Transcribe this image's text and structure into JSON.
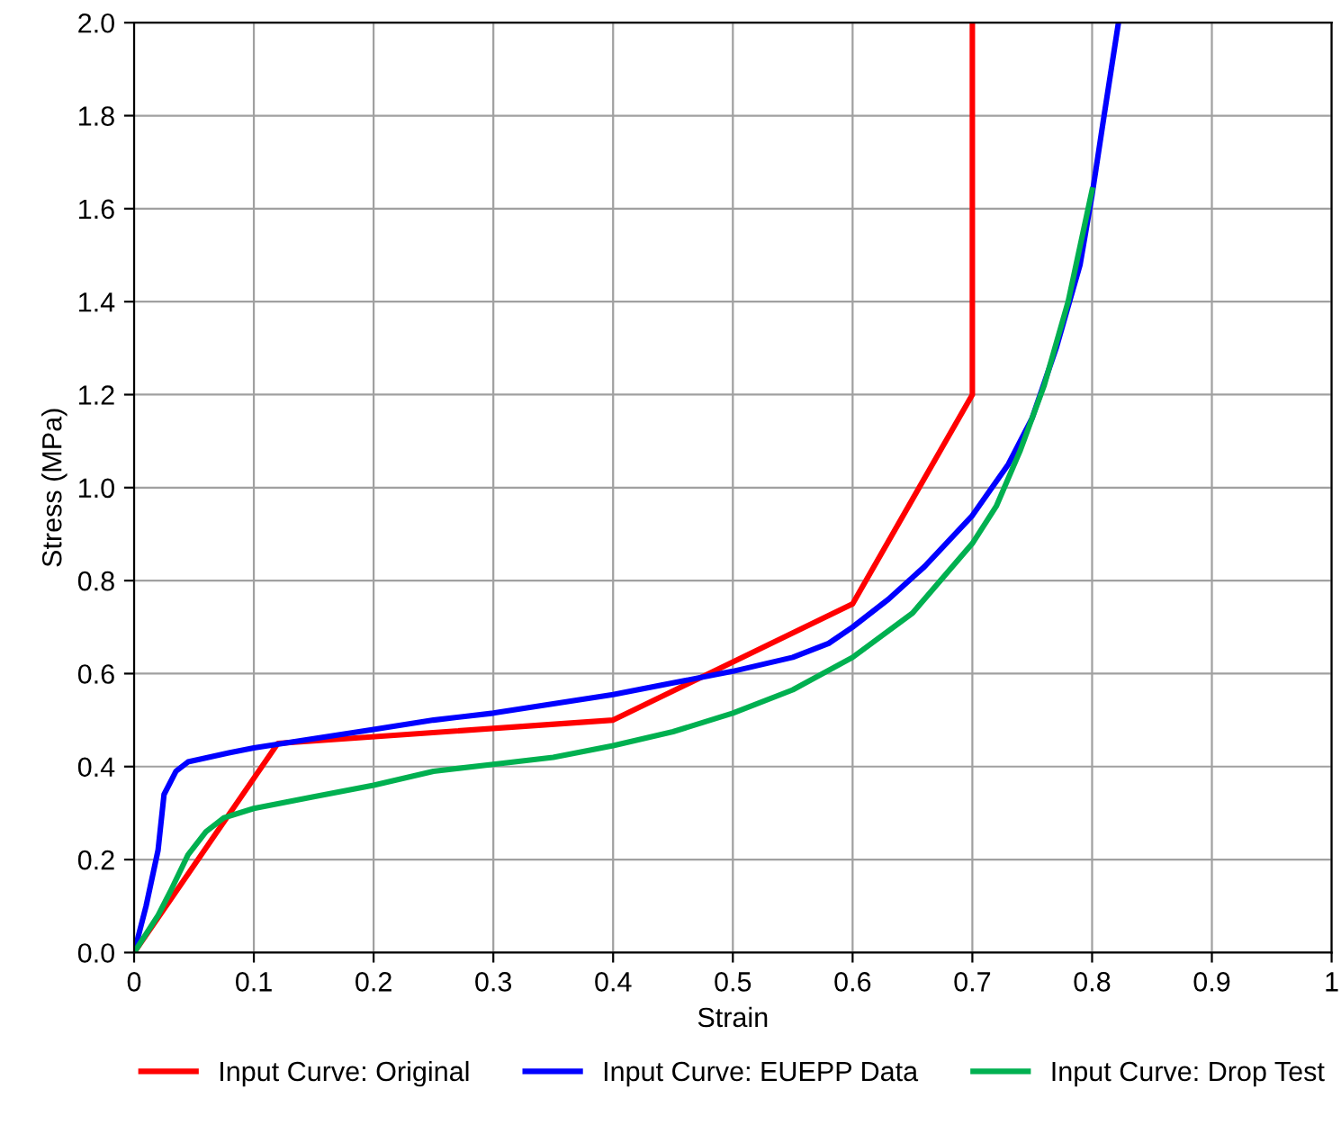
{
  "chart_data": {
    "type": "line",
    "xlabel": "Strain",
    "ylabel": "Stress (MPa)",
    "xlim": [
      0,
      1
    ],
    "xticks": [
      0,
      0.1,
      0.2,
      0.3,
      0.4,
      0.5,
      0.6,
      0.7,
      0.8,
      0.9,
      1
    ],
    "ylim": [
      0,
      2
    ],
    "yticks": [
      {
        "value": 0,
        "label": "0.0"
      },
      {
        "value": 0.2,
        "label": "0.2"
      },
      {
        "value": 0.4,
        "label": "0.4"
      },
      {
        "value": 0.6,
        "label": "0.6"
      },
      {
        "value": 0.8,
        "label": "0.8"
      },
      {
        "value": 1,
        "label": "1.0"
      },
      {
        "value": 1.2,
        "label": "1.2"
      },
      {
        "value": 1.4,
        "label": "1.4"
      },
      {
        "value": 1.6,
        "label": "1.6"
      },
      {
        "value": 1.8,
        "label": "1.8"
      },
      {
        "value": 2,
        "label": "2.0"
      }
    ],
    "grid": true,
    "legend": "bottom",
    "marker": "none",
    "line_style": "solid",
    "series": [
      {
        "name": "Input Curve: Original",
        "color": "#ff0000",
        "x": [
          0,
          0.12,
          0.4,
          0.6,
          0.7,
          0.7
        ],
        "values": [
          0,
          0.45,
          0.5,
          0.75,
          1.2,
          2.0
        ]
      },
      {
        "name": "Input Curve: EUEPP Data",
        "color": "#0000ff",
        "x": [
          0,
          0.01,
          0.02,
          0.025,
          0.035,
          0.045,
          0.08,
          0.1,
          0.15,
          0.2,
          0.25,
          0.3,
          0.35,
          0.4,
          0.45,
          0.5,
          0.55,
          0.58,
          0.6,
          0.63,
          0.66,
          0.7,
          0.73,
          0.75,
          0.77,
          0.79,
          0.8,
          0.81,
          0.822
        ],
        "values": [
          0,
          0.1,
          0.22,
          0.34,
          0.39,
          0.41,
          0.43,
          0.44,
          0.46,
          0.48,
          0.5,
          0.515,
          0.535,
          0.555,
          0.58,
          0.605,
          0.635,
          0.665,
          0.7,
          0.76,
          0.83,
          0.94,
          1.05,
          1.15,
          1.3,
          1.48,
          1.63,
          1.8,
          2.0
        ]
      },
      {
        "name": "Input Curve: Drop Test",
        "color": "#00b050",
        "x": [
          0,
          0.02,
          0.03,
          0.045,
          0.06,
          0.075,
          0.1,
          0.15,
          0.2,
          0.25,
          0.3,
          0.35,
          0.4,
          0.45,
          0.5,
          0.55,
          0.6,
          0.65,
          0.7,
          0.72,
          0.74,
          0.76,
          0.78,
          0.8
        ],
        "values": [
          0,
          0.08,
          0.13,
          0.21,
          0.26,
          0.29,
          0.31,
          0.335,
          0.36,
          0.39,
          0.405,
          0.42,
          0.445,
          0.475,
          0.515,
          0.565,
          0.635,
          0.73,
          0.88,
          0.96,
          1.08,
          1.22,
          1.4,
          1.64
        ]
      }
    ]
  }
}
